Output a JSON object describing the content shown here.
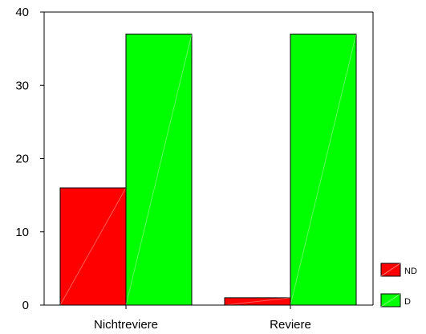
{
  "chart_data": {
    "type": "bar",
    "categories": [
      "Nichtreviere",
      "Reviere"
    ],
    "series": [
      {
        "name": "ND",
        "values": [
          16,
          1
        ],
        "color": "#ff0000"
      },
      {
        "name": "D",
        "values": [
          37,
          37
        ],
        "color": "#00ff00"
      }
    ],
    "ylim": [
      0,
      40
    ],
    "yticks": [
      0,
      10,
      20,
      30,
      40
    ],
    "grid": false,
    "legend_position": "bottom-right"
  }
}
